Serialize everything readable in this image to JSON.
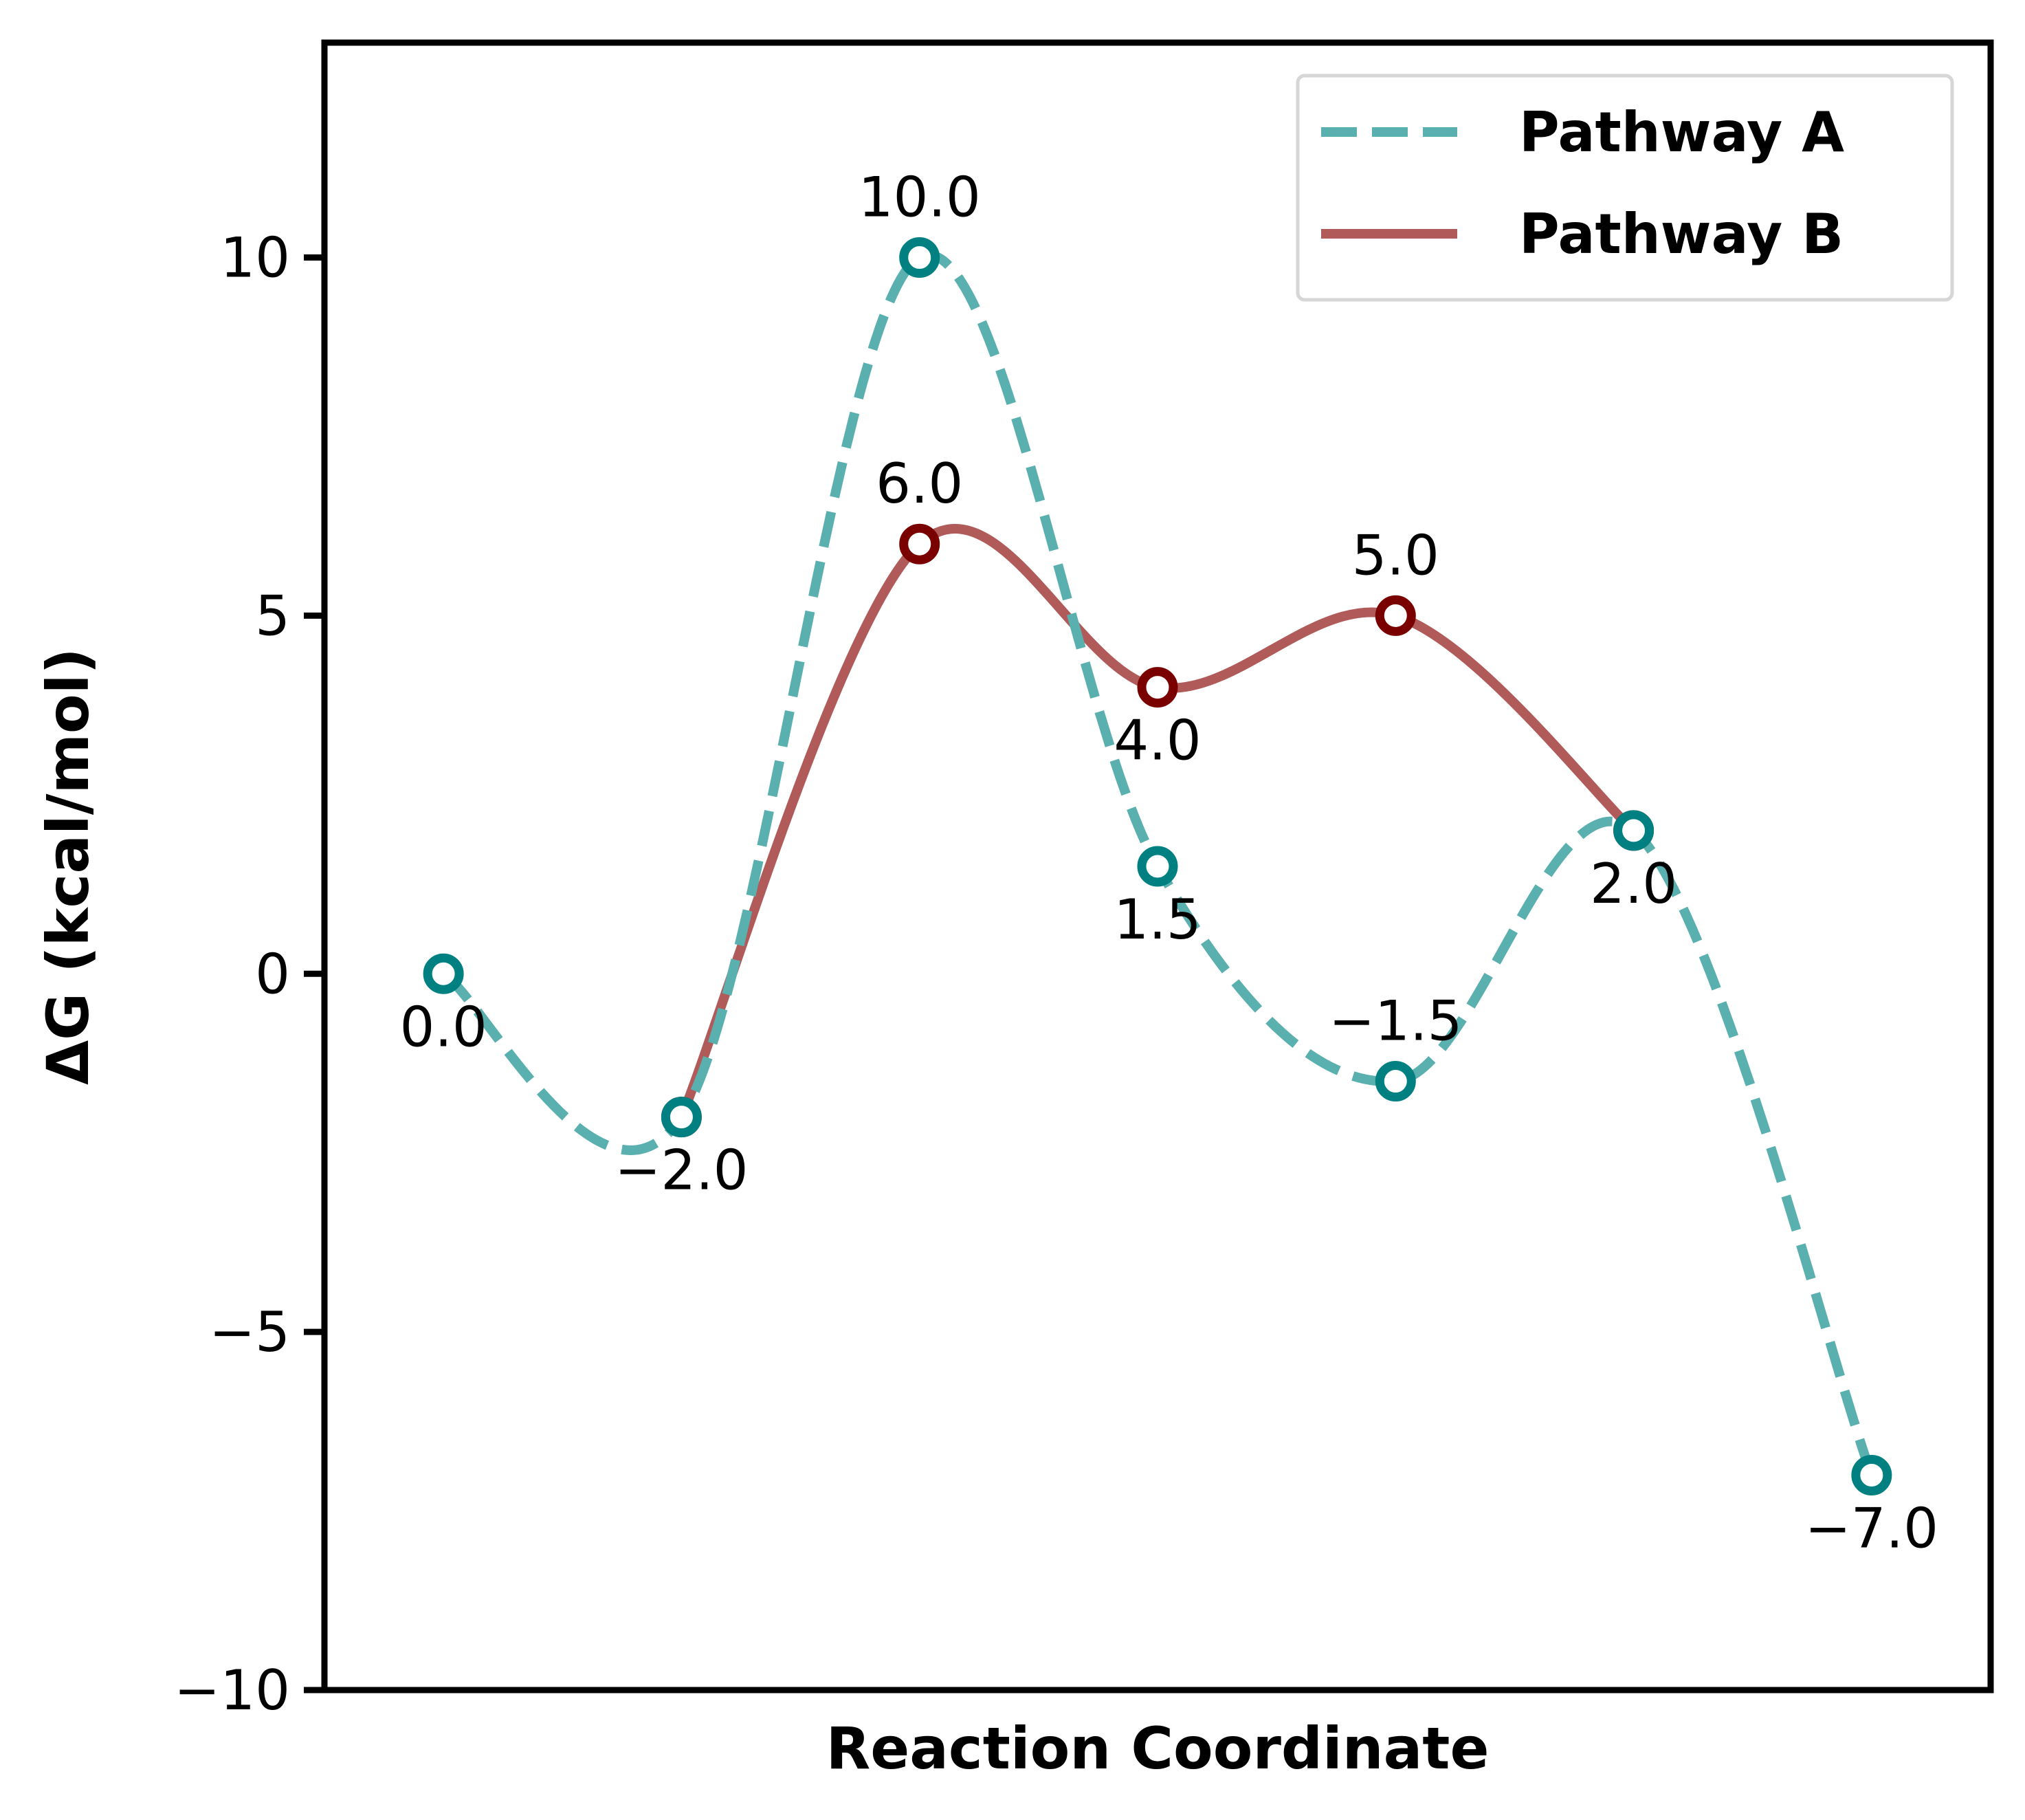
{
  "chart_data": {
    "type": "line",
    "title": "",
    "xlabel": "Reaction Coordinate",
    "ylabel": "ΔG (kcal/mol)",
    "x": [
      0,
      1,
      2,
      3,
      4,
      5,
      6
    ],
    "xlim": [
      -0.5,
      6.5
    ],
    "ylim": [
      -10,
      13
    ],
    "yticks": [
      -10,
      -5,
      0,
      5,
      10
    ],
    "ytick_labels": [
      "−10",
      "−5",
      "0",
      "5",
      "10"
    ],
    "grid": false,
    "legend_position": "top-right",
    "series": [
      {
        "name": "Pathway A",
        "style": "dashed",
        "color": "#5aafaf",
        "marker_color": "#008080",
        "x": [
          0,
          1,
          2,
          3,
          4,
          5,
          6
        ],
        "values": [
          0.0,
          -2.0,
          10.0,
          1.5,
          -1.5,
          2.0,
          -7.0
        ],
        "labels": [
          "0.0",
          "−2.0",
          "10.0",
          "1.5",
          "−1.5",
          "2.0",
          "−7.0"
        ],
        "label_positions": [
          "below",
          "below",
          "above",
          "below",
          "above",
          "below",
          "below"
        ]
      },
      {
        "name": "Pathway B",
        "style": "solid",
        "color": "#b05a5a",
        "marker_color": "#7a0000",
        "x": [
          1,
          2,
          3,
          4,
          5
        ],
        "values": [
          -2.0,
          6.0,
          4.0,
          5.0,
          2.0
        ],
        "labels": [
          "",
          "6.0",
          "4.0",
          "5.0",
          ""
        ],
        "label_positions": [
          "none",
          "above",
          "below",
          "above",
          "none"
        ]
      }
    ]
  }
}
